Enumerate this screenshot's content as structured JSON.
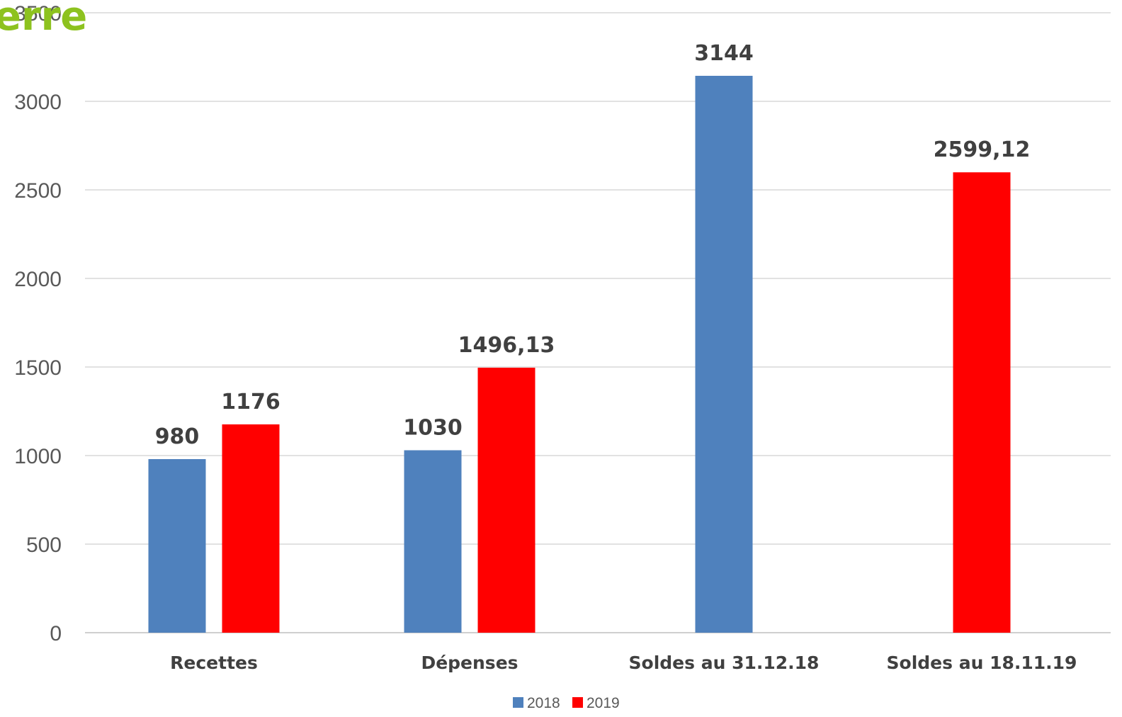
{
  "logo": {
    "text": "erre",
    "color": "#8dc21f"
  },
  "chart_data": {
    "type": "bar",
    "title": "",
    "xlabel": "",
    "ylabel": "",
    "categories": [
      "Recettes",
      "Dépenses",
      "Soldes au 31.12.18",
      "Soldes au 18.11.19"
    ],
    "series": [
      {
        "name": "2018",
        "color": "#4f81bd",
        "values": [
          980,
          1030,
          3144,
          null
        ],
        "labels": [
          "980",
          "1030",
          "3144",
          ""
        ]
      },
      {
        "name": "2019",
        "color": "#ff0000",
        "values": [
          1176,
          1496.13,
          null,
          2599.12
        ],
        "labels": [
          "1176",
          "1496,13",
          "",
          "2599,12"
        ]
      }
    ],
    "ylim": [
      0,
      3500
    ],
    "yticks": [
      0,
      500,
      1000,
      1500,
      2000,
      2500,
      3000,
      3500
    ],
    "grid": true,
    "legend_position": "bottom"
  }
}
